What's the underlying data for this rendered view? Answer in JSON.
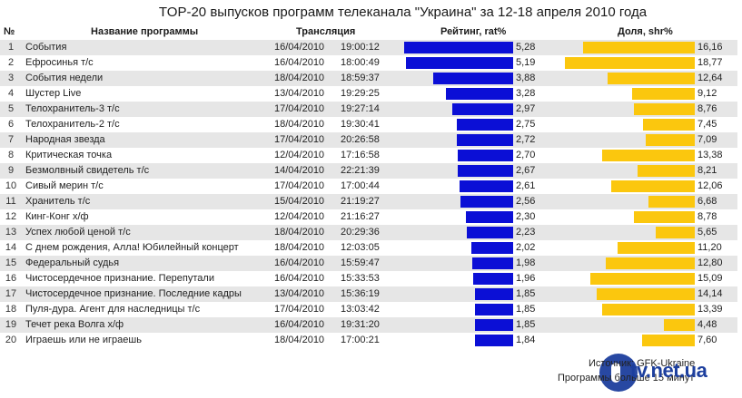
{
  "title": "TOP-20 выпусков программ телеканала \"Украина\" за 12-18 апреля 2010 года",
  "headers": {
    "num": "№",
    "name": "Название программы",
    "broadcast": "Трансляция",
    "rating": "Рейтинг, rat%",
    "share": "Доля, shr%"
  },
  "colors": {
    "rating_bar": "#0b0fd6",
    "share_bar": "#fbc70e",
    "row_shade": "#e6e6e6"
  },
  "rows": [
    {
      "num": "1",
      "name": "События",
      "date": "16/04/2010",
      "time": "19:00:12",
      "rat": "5,28",
      "shr": "16,16"
    },
    {
      "num": "2",
      "name": "Ефросинья т/с",
      "date": "16/04/2010",
      "time": "18:00:49",
      "rat": "5,19",
      "shr": "18,77"
    },
    {
      "num": "3",
      "name": "События недели",
      "date": "18/04/2010",
      "time": "18:59:37",
      "rat": "3,88",
      "shr": "12,64"
    },
    {
      "num": "4",
      "name": "Шустер Live",
      "date": "13/04/2010",
      "time": "19:29:25",
      "rat": "3,28",
      "shr": "9,12"
    },
    {
      "num": "5",
      "name": "Телохранитель-3 т/с",
      "date": "17/04/2010",
      "time": "19:27:14",
      "rat": "2,97",
      "shr": "8,76"
    },
    {
      "num": "6",
      "name": "Телохранитель-2 т/с",
      "date": "18/04/2010",
      "time": "19:30:41",
      "rat": "2,75",
      "shr": "7,45"
    },
    {
      "num": "7",
      "name": "Народная звезда",
      "date": "17/04/2010",
      "time": "20:26:58",
      "rat": "2,72",
      "shr": "7,09"
    },
    {
      "num": "8",
      "name": "Критическая точка",
      "date": "12/04/2010",
      "time": "17:16:58",
      "rat": "2,70",
      "shr": "13,38"
    },
    {
      "num": "9",
      "name": "Безмолвный свидетель т/с",
      "date": "14/04/2010",
      "time": "22:21:39",
      "rat": "2,67",
      "shr": "8,21"
    },
    {
      "num": "10",
      "name": "Сивый мерин т/с",
      "date": "17/04/2010",
      "time": "17:00:44",
      "rat": "2,61",
      "shr": "12,06"
    },
    {
      "num": "11",
      "name": "Хранитель т/с",
      "date": "15/04/2010",
      "time": "21:19:27",
      "rat": "2,56",
      "shr": "6,68"
    },
    {
      "num": "12",
      "name": "Кинг-Конг х/ф",
      "date": "12/04/2010",
      "time": "21:16:27",
      "rat": "2,30",
      "shr": "8,78"
    },
    {
      "num": "13",
      "name": "Успех любой ценой т/с",
      "date": "18/04/2010",
      "time": "20:29:36",
      "rat": "2,23",
      "shr": "5,65"
    },
    {
      "num": "14",
      "name": "С днем рождения, Алла! Юбилейный концерт",
      "date": "18/04/2010",
      "time": "12:03:05",
      "rat": "2,02",
      "shr": "11,20"
    },
    {
      "num": "15",
      "name": "Федеральный судья",
      "date": "16/04/2010",
      "time": "15:59:47",
      "rat": "1,98",
      "shr": "12,80"
    },
    {
      "num": "16",
      "name": "Чистосердечное признание. Перепутали",
      "date": "16/04/2010",
      "time": "15:33:53",
      "rat": "1,96",
      "shr": "15,09"
    },
    {
      "num": "17",
      "name": "Чистосердечное признание. Последние кадры",
      "date": "13/04/2010",
      "time": "15:36:19",
      "rat": "1,85",
      "shr": "14,14"
    },
    {
      "num": "18",
      "name": "Пуля-дура. Агент для наследницы т/с",
      "date": "17/04/2010",
      "time": "13:03:42",
      "rat": "1,85",
      "shr": "13,39"
    },
    {
      "num": "19",
      "name": "Течет река Волга х/ф",
      "date": "16/04/2010",
      "time": "19:31:20",
      "rat": "1,85",
      "shr": "4,48"
    },
    {
      "num": "20",
      "name": "Играешь или не играешь",
      "date": "18/04/2010",
      "time": "17:00:21",
      "rat": "1,84",
      "shr": "7,60"
    }
  ],
  "footer": {
    "source": "Источник: GFK-Ukraine",
    "note": "Программы больше 15 минут",
    "logo_text": "tv.net.ua"
  },
  "chart_data": {
    "type": "bar",
    "title": "TOP-20 выпусков программ телеканала \"Украина\" за 12-18 апреля 2010 года",
    "orientation": "horizontal",
    "categories": [
      "События",
      "Ефросинья т/с",
      "События недели",
      "Шустер Live",
      "Телохранитель-3 т/с",
      "Телохранитель-2 т/с",
      "Народная звезда",
      "Критическая точка",
      "Безмолвный свидетель т/с",
      "Сивый мерин т/с",
      "Хранитель т/с",
      "Кинг-Конг х/ф",
      "Успех любой ценой т/с",
      "С днем рождения, Алла! Юбилейный концерт",
      "Федеральный судья",
      "Чистосердечное признание. Перепутали",
      "Чистосердечное признание. Последние кадры",
      "Пуля-дура. Агент для наследницы т/с",
      "Течет река Волга х/ф",
      "Играешь или не играешь"
    ],
    "series": [
      {
        "name": "Рейтинг, rat%",
        "color": "#0b0fd6",
        "values": [
          5.28,
          5.19,
          3.88,
          3.28,
          2.97,
          2.75,
          2.72,
          2.7,
          2.67,
          2.61,
          2.56,
          2.3,
          2.23,
          2.02,
          1.98,
          1.96,
          1.85,
          1.85,
          1.85,
          1.84
        ]
      },
      {
        "name": "Доля, shr%",
        "color": "#fbc70e",
        "values": [
          16.16,
          18.77,
          12.64,
          9.12,
          8.76,
          7.45,
          7.09,
          13.38,
          8.21,
          12.06,
          6.68,
          8.78,
          5.65,
          11.2,
          12.8,
          15.09,
          14.14,
          13.39,
          4.48,
          7.6
        ]
      }
    ],
    "xlabel": "",
    "ylabel": "",
    "grid": false,
    "legend": "column headers"
  }
}
